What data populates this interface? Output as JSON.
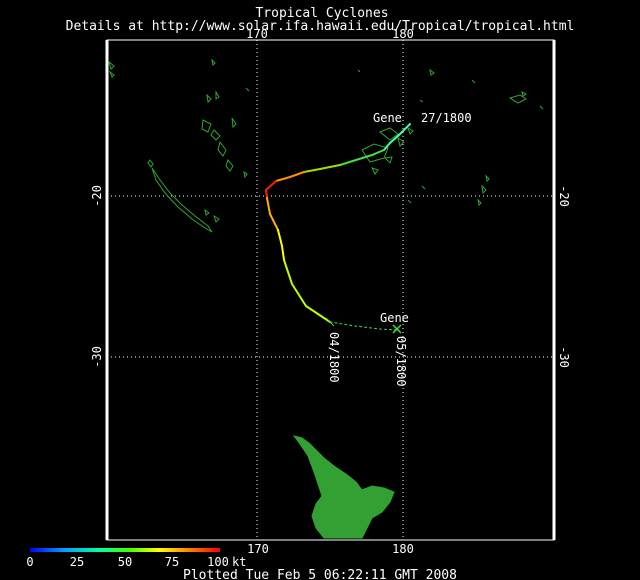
{
  "header": {
    "title": "Tropical Cyclones",
    "details": "Details at http://www.solar.ifa.hawaii.edu/Tropical/tropical.html"
  },
  "axes": {
    "lon_top": [
      "170",
      "180"
    ],
    "lon_bottom": [
      "170",
      "180"
    ],
    "lat_left": [
      "-20",
      "-30"
    ],
    "lat_right": [
      "-20",
      "-30"
    ]
  },
  "storm": {
    "name_start": "Gene",
    "time_start": "27/1800",
    "name_end": "Gene",
    "time_mid": "04/1800",
    "time_end": "05/1800"
  },
  "intensity_scale": {
    "ticks": [
      "0",
      "25",
      "50",
      "75",
      "100"
    ],
    "unit": "kt",
    "colors": [
      "#0000ff",
      "#00a0ff",
      "#00ffa0",
      "#40ff00",
      "#ffff00",
      "#ff8000",
      "#ff0000"
    ]
  },
  "footer": {
    "plotted": "Plotted Tue Feb  5 06:22:11 GMT 2008"
  },
  "colors": {
    "background": "#000000",
    "land_outline": "#2fa52f",
    "land_fill": "#33a033",
    "grid": "#ffffff"
  }
}
